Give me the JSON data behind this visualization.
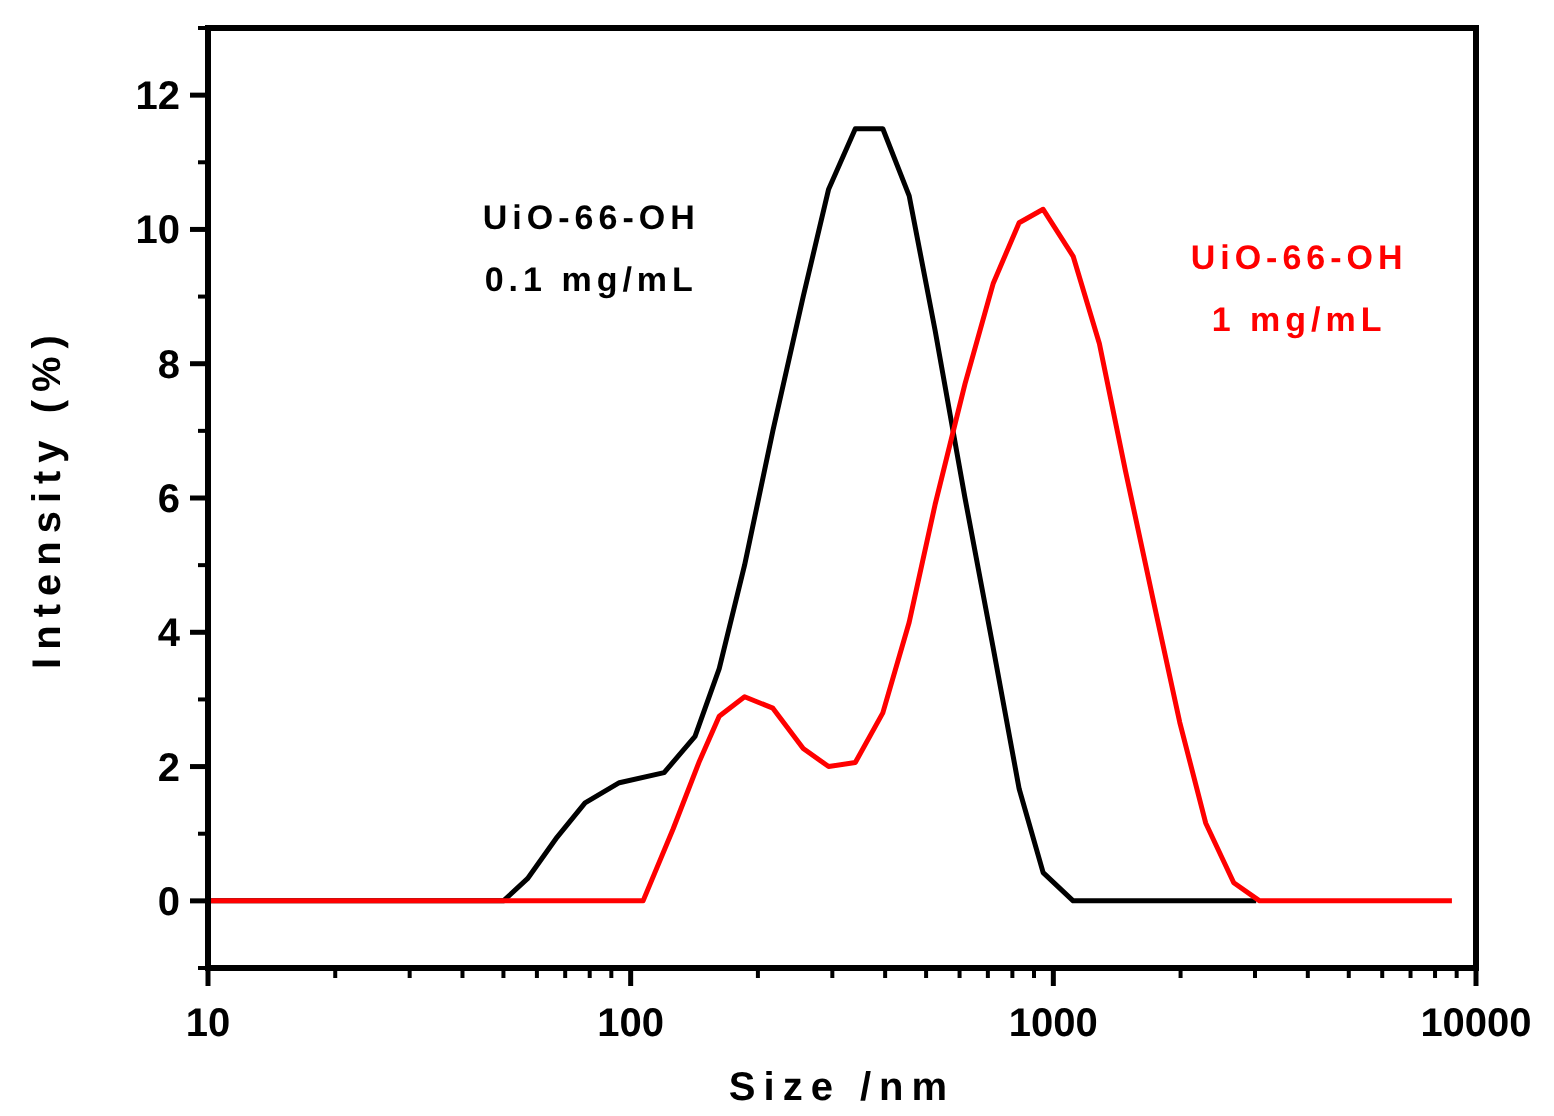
{
  "chart_data": {
    "type": "line",
    "xlabel": "Size /nm",
    "ylabel": "Intensity (%)",
    "log": "x",
    "xlim": [
      10,
      10000
    ],
    "xticks": [
      10,
      100,
      1000,
      10000
    ],
    "ylim": [
      -1,
      13
    ],
    "yticks": [
      0,
      2,
      4,
      6,
      8,
      10,
      12
    ],
    "grid": false,
    "marker": "none",
    "line_style": "solid",
    "series": [
      {
        "name": "UiO-66-OH\n0.1 mg/mL",
        "color": "#000000",
        "x": [
          10,
          50,
          57,
          67,
          78,
          94,
          120,
          142,
          162,
          186,
          217,
          256,
          294,
          340,
          395,
          456,
          525,
          618,
          721,
          830,
          946,
          1114,
          3020
        ],
        "values": [
          0,
          0,
          0.33,
          0.95,
          1.46,
          1.76,
          1.91,
          2.45,
          3.46,
          5.0,
          7.0,
          9.0,
          10.6,
          11.5,
          11.5,
          10.5,
          8.5,
          6.0,
          3.76,
          1.67,
          0.42,
          0,
          0
        ]
      },
      {
        "name": "UiO-66-OH\n1 mg/mL",
        "color": "#ff0000",
        "x": [
          10,
          93,
          107,
          126,
          145,
          162,
          186,
          217,
          256,
          294,
          340,
          395,
          456,
          525,
          618,
          721,
          830,
          946,
          1114,
          1285,
          1482,
          1727,
          1991,
          2293,
          2672,
          3076,
          8770
        ],
        "values": [
          0,
          0,
          0,
          1.07,
          2.06,
          2.75,
          3.04,
          2.87,
          2.27,
          2.0,
          2.06,
          2.8,
          4.15,
          5.9,
          7.7,
          9.2,
          10.1,
          10.3,
          9.6,
          8.3,
          6.4,
          4.45,
          2.66,
          1.16,
          0.27,
          0,
          0
        ]
      }
    ]
  }
}
